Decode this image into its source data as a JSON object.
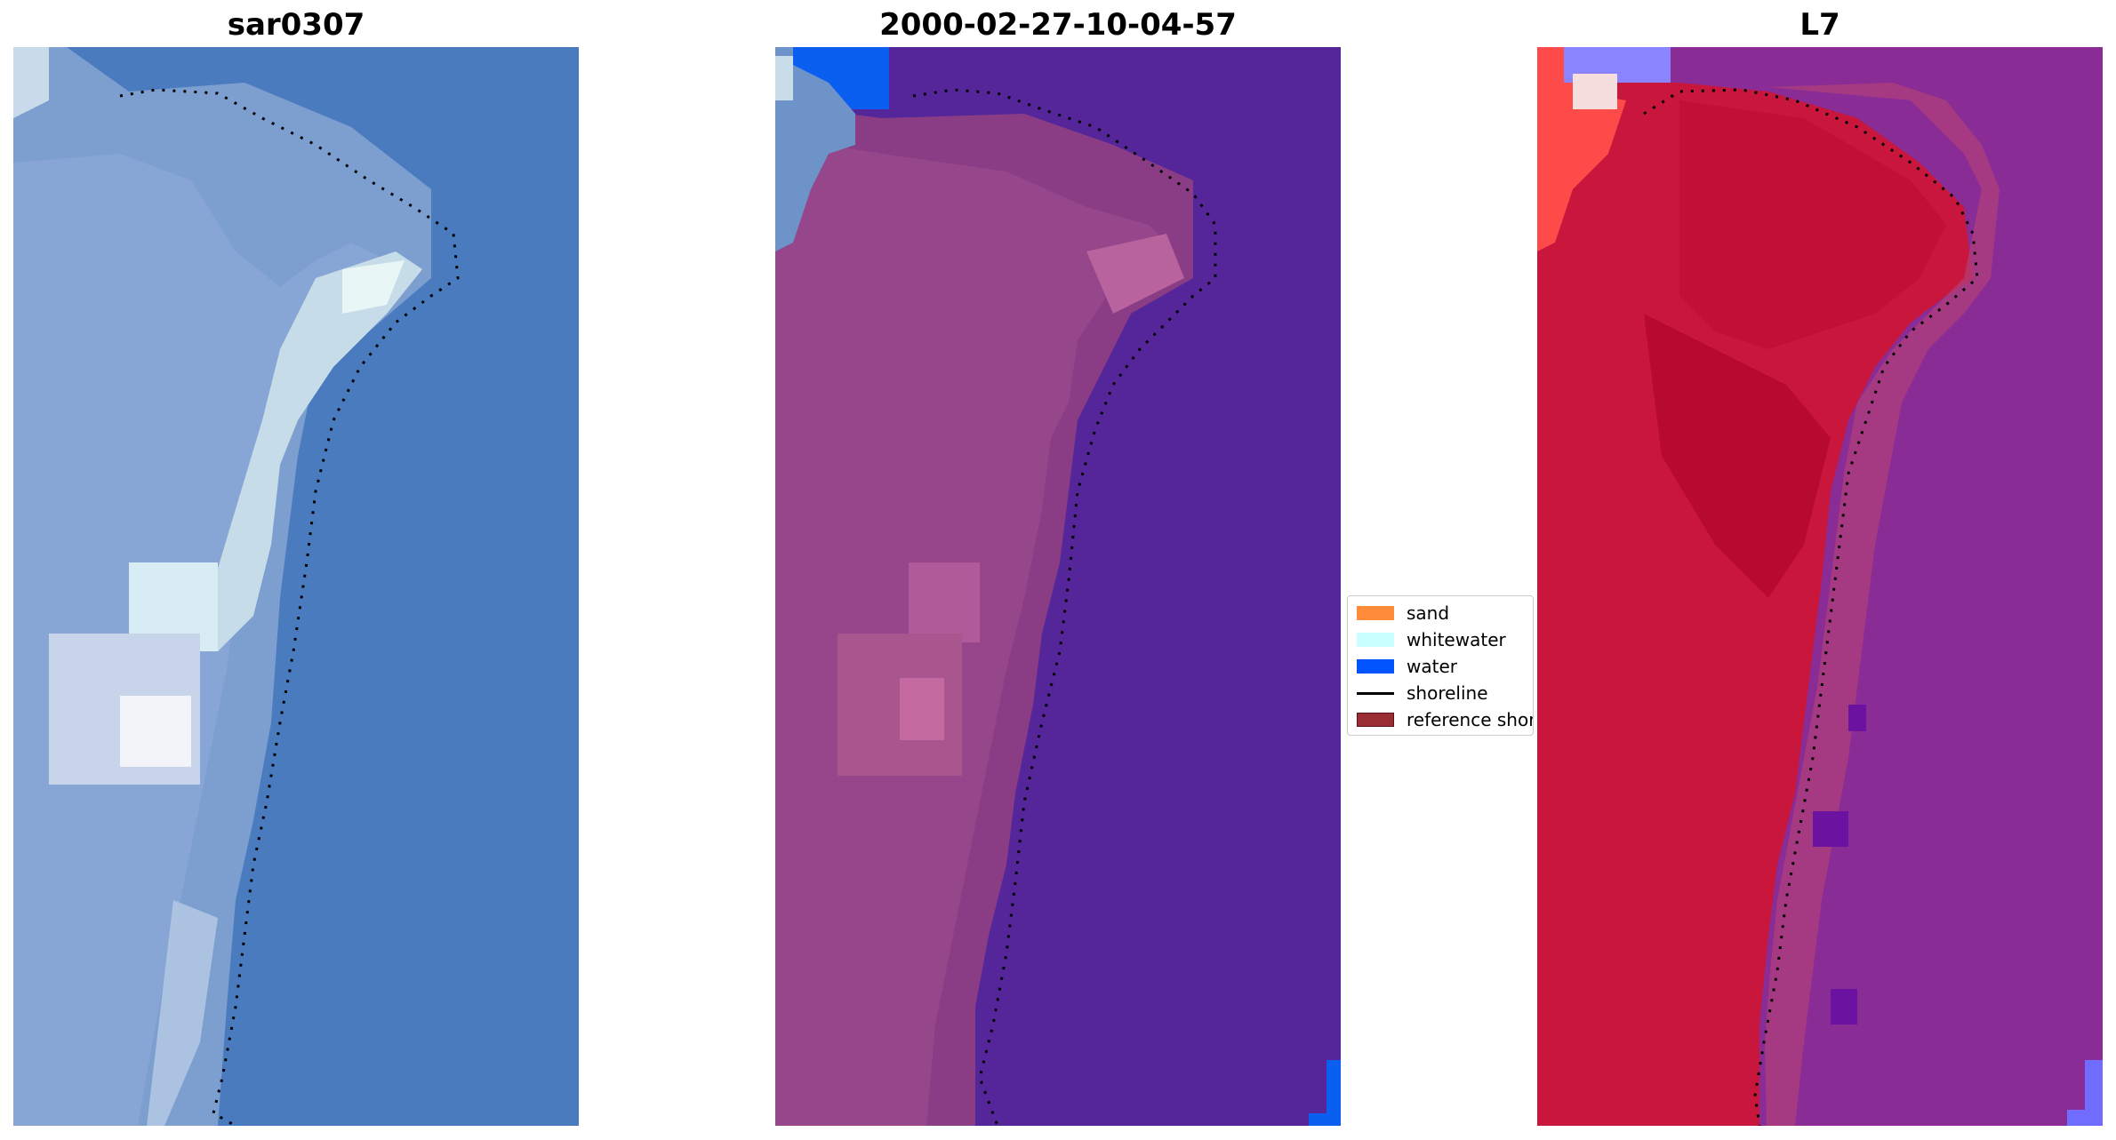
{
  "panels": [
    {
      "title": "sar0307"
    },
    {
      "title": "2000-02-27-10-04-57"
    },
    {
      "title": "L7"
    }
  ],
  "legend": {
    "items": [
      {
        "label": "sand",
        "type": "patch",
        "color": "#ff8c3a"
      },
      {
        "label": "whitewater",
        "type": "patch",
        "color": "#c9ffff"
      },
      {
        "label": "water",
        "type": "patch",
        "color": "#0055ff"
      },
      {
        "label": "shoreline",
        "type": "line",
        "color": "#000000"
      },
      {
        "label": "reference shoreline",
        "type": "patch",
        "color": "#9a2c34"
      }
    ]
  },
  "colors": {
    "rgb_water": "#4a7bbf",
    "rgb_land": "#8fa7d4",
    "class_water": "#55259a",
    "class_land": "#8a3d84",
    "false_color_land": "#c8163c",
    "false_color_water": "#8a2c96"
  }
}
